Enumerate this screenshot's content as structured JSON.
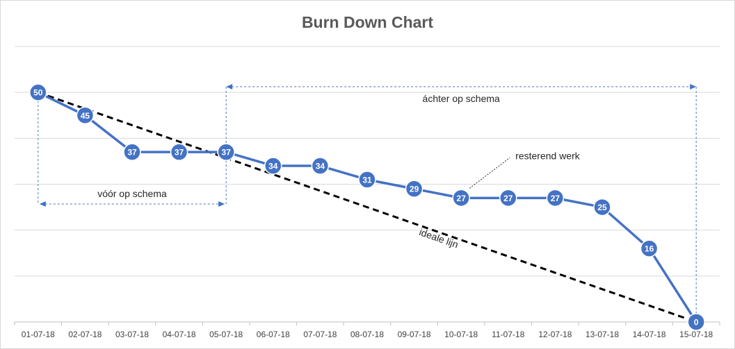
{
  "chart_data": {
    "type": "line",
    "title": "Burn Down Chart",
    "xlabel": "",
    "ylabel": "",
    "ylim": [
      0,
      60
    ],
    "grid": true,
    "categories": [
      "01-07-18",
      "02-07-18",
      "03-07-18",
      "04-07-18",
      "05-07-18",
      "06-07-18",
      "07-07-18",
      "08-07-18",
      "09-07-18",
      "10-07-18",
      "11-07-18",
      "12-07-18",
      "13-07-18",
      "14-07-18",
      "15-07-18"
    ],
    "series": [
      {
        "name": "resterend werk",
        "values": [
          50,
          45,
          37,
          37,
          37,
          34,
          34,
          31,
          29,
          27,
          27,
          27,
          25,
          16,
          0
        ]
      },
      {
        "name": "ideale lijn",
        "values": [
          50,
          null,
          null,
          null,
          null,
          null,
          null,
          null,
          null,
          null,
          null,
          null,
          null,
          null,
          0
        ]
      }
    ],
    "annotations": {
      "behind": "áchter  op schema",
      "ahead": "vóór op schema",
      "remaining": "resterend werk",
      "ideal": "ideale lijn"
    },
    "colors": {
      "actual": "#4472c4",
      "ideal": "#000000",
      "grid": "#d9d9d9",
      "axis": "#bfbfbf"
    }
  }
}
